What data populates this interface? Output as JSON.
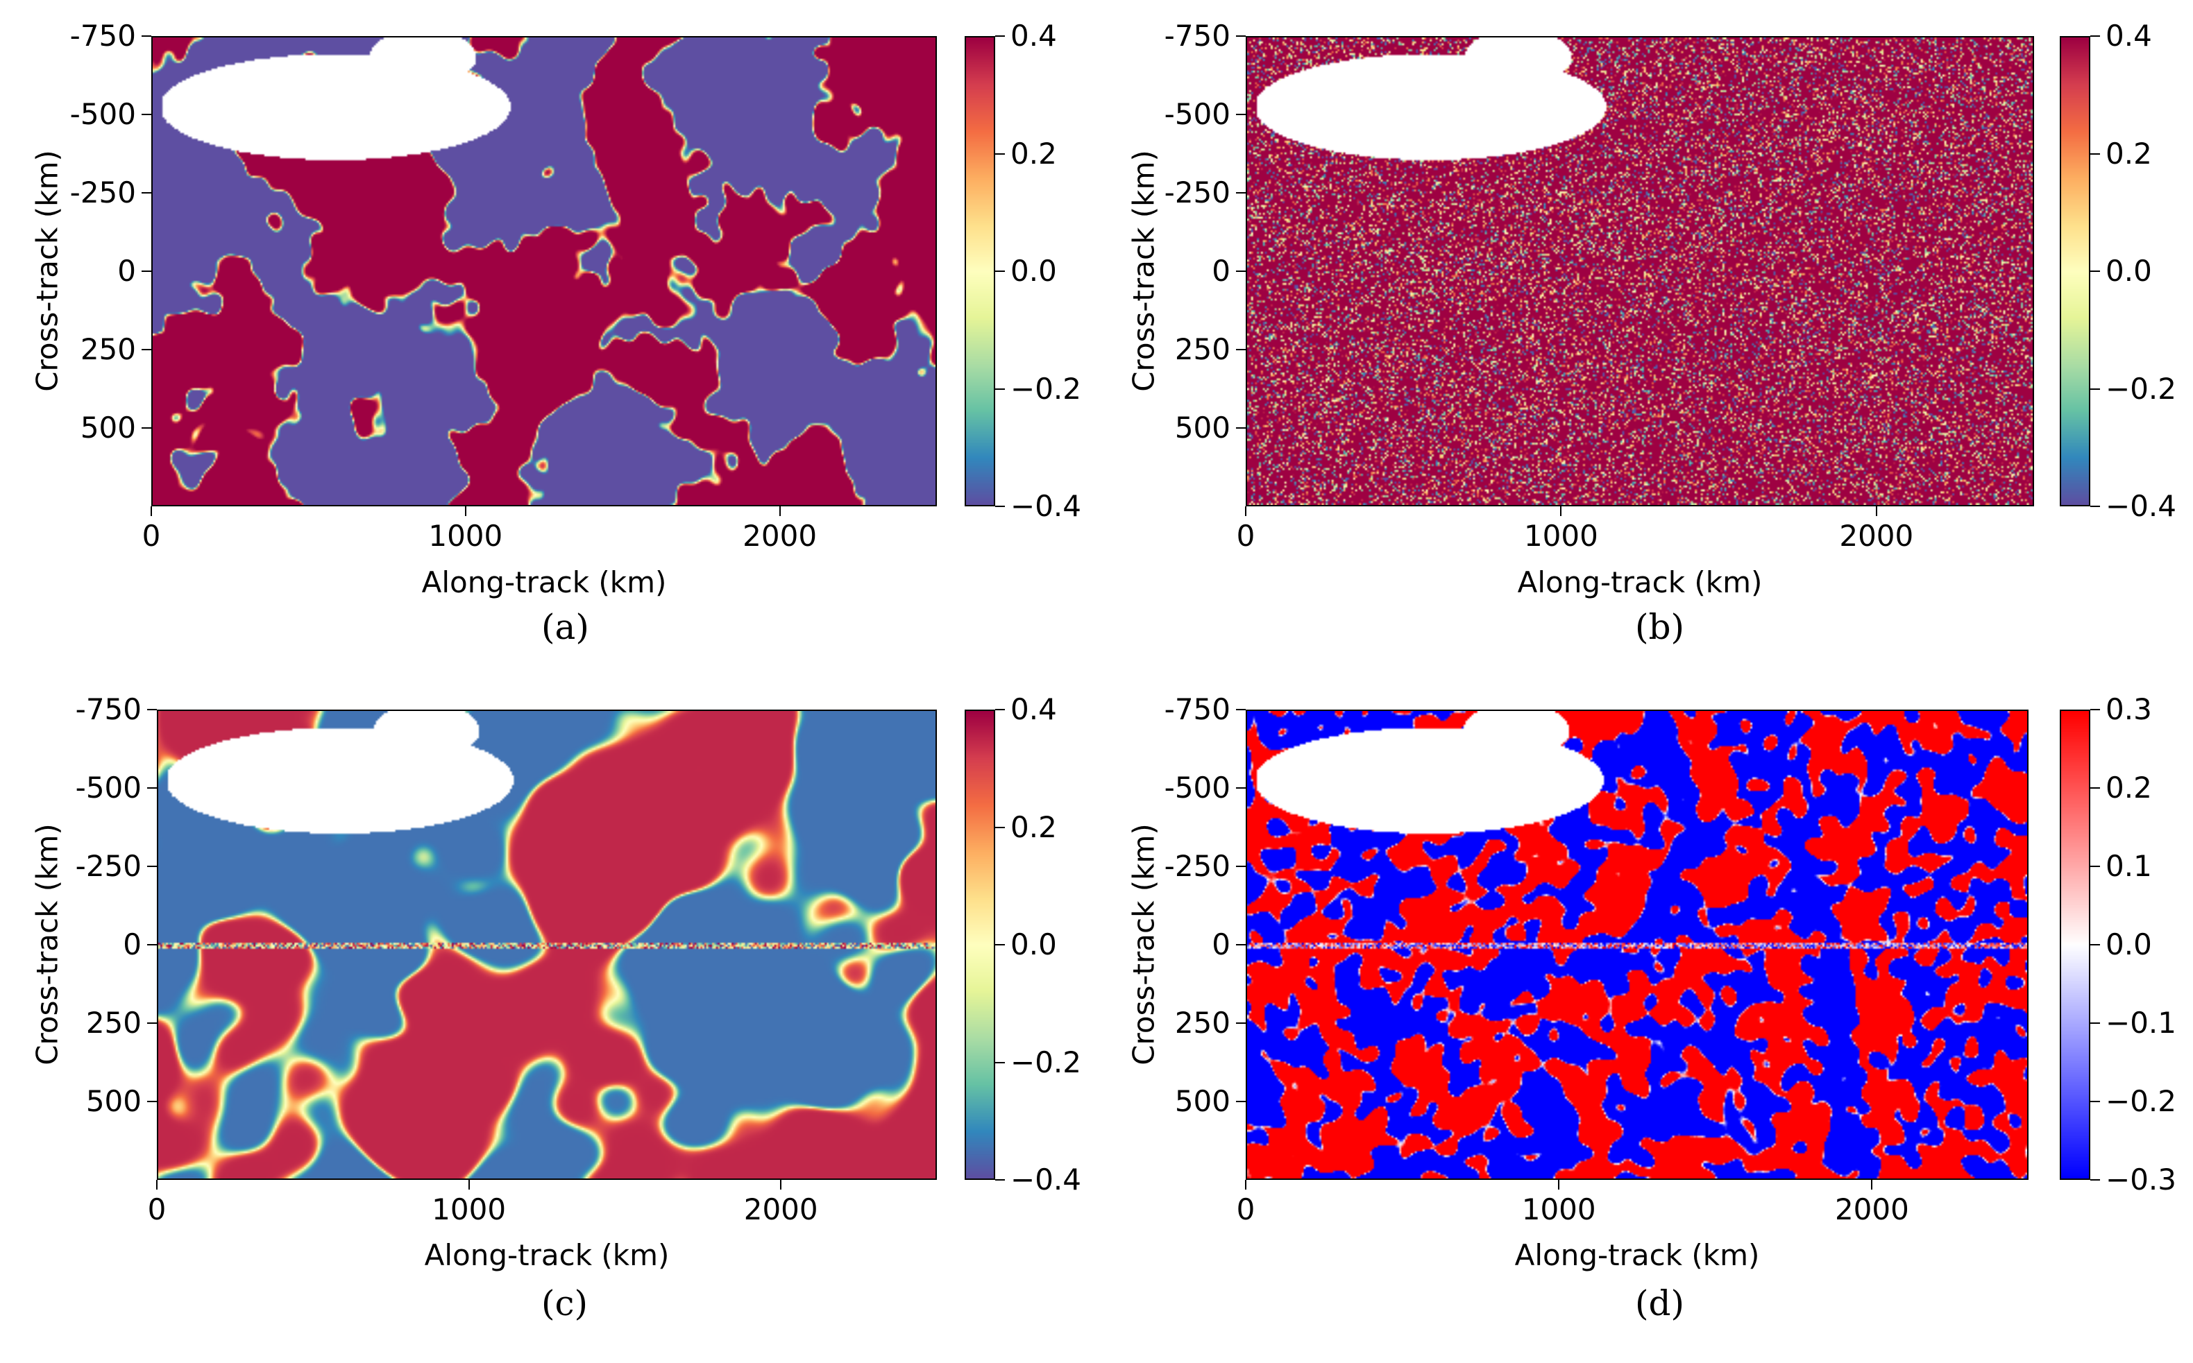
{
  "panels_labels": [
    "(a)",
    "(b)",
    "(c)",
    "(d)"
  ],
  "chart_data": [
    {
      "type": "heatmap",
      "panel": "a",
      "xlabel": "Along-track (km)",
      "ylabel": "Cross-track (km)",
      "xlim": [
        0,
        2500
      ],
      "ylim": [
        750,
        -750
      ],
      "xticks": [
        "0",
        "1000",
        "2000"
      ],
      "xtick_values": [
        0,
        1000,
        2000
      ],
      "yticks": [
        "-750",
        "-500",
        "-250",
        "0",
        "250",
        "500"
      ],
      "ytick_values": [
        -750,
        -500,
        -250,
        0,
        250,
        500
      ],
      "colorbar": {
        "colormap": "Spectral_r",
        "range": [
          -0.4,
          0.4
        ],
        "ticks": [
          "0.4",
          "0.2",
          "0.0",
          "−0.2",
          "−0.4"
        ],
        "tick_values": [
          0.4,
          0.2,
          0.0,
          -0.2,
          -0.4
        ]
      },
      "field": "smooth eddy field with land mask at top-left",
      "colors": {
        "land": "#ffffff"
      }
    },
    {
      "type": "heatmap",
      "panel": "b",
      "xlabel": "Along-track (km)",
      "ylabel": "Cross-track (km)",
      "xlim": [
        0,
        2500
      ],
      "ylim": [
        750,
        -750
      ],
      "xticks": [
        "0",
        "1000",
        "2000"
      ],
      "xtick_values": [
        0,
        1000,
        2000
      ],
      "yticks": [
        "-750",
        "-500",
        "-250",
        "0",
        "250",
        "500"
      ],
      "ytick_values": [
        -750,
        -500,
        -250,
        0,
        250,
        500
      ],
      "colorbar": {
        "colormap": "Spectral_r",
        "range": [
          -0.4,
          0.4
        ],
        "ticks": [
          "0.4",
          "0.2",
          "0.0",
          "−0.2",
          "−0.4"
        ],
        "tick_values": [
          0.4,
          0.2,
          0.0,
          -0.2,
          -0.4
        ]
      },
      "field": "noise-dominated field, mostly saturated red",
      "colors": {
        "land": "#ffffff"
      }
    },
    {
      "type": "heatmap",
      "panel": "c",
      "xlabel": "Along-track (km)",
      "ylabel": "Cross-track (km)",
      "xlim": [
        0,
        2500
      ],
      "ylim": [
        750,
        -750
      ],
      "xticks": [
        "0",
        "1000",
        "2000"
      ],
      "xtick_values": [
        0,
        1000,
        2000
      ],
      "yticks": [
        "-750",
        "-500",
        "-250",
        "0",
        "250",
        "500"
      ],
      "ytick_values": [
        -750,
        -500,
        -250,
        0,
        250,
        500
      ],
      "colorbar": {
        "colormap": "Spectral_r",
        "range": [
          -0.4,
          0.4
        ],
        "ticks": [
          "0.4",
          "0.2",
          "0.0",
          "−0.2",
          "−0.4"
        ],
        "tick_values": [
          0.4,
          0.2,
          0.0,
          -0.2,
          -0.4
        ]
      },
      "field": "smoothed large-scale field with nadir stripe at 0 km",
      "colors": {
        "land": "#ffffff"
      }
    },
    {
      "type": "heatmap",
      "panel": "d",
      "xlabel": "Along-track (km)",
      "ylabel": "Cross-track (km)",
      "xlim": [
        0,
        2500
      ],
      "ylim": [
        750,
        -750
      ],
      "xticks": [
        "0",
        "1000",
        "2000"
      ],
      "xtick_values": [
        0,
        1000,
        2000
      ],
      "yticks": [
        "-750",
        "-500",
        "-250",
        "0",
        "250",
        "500"
      ],
      "ytick_values": [
        -750,
        -500,
        -250,
        0,
        250,
        500
      ],
      "colorbar": {
        "colormap": "bwr",
        "range": [
          -0.3,
          0.3
        ],
        "ticks": [
          "0.3",
          "0.2",
          "0.1",
          "0.0",
          "−0.1",
          "−0.2",
          "−0.3"
        ],
        "tick_values": [
          0.3,
          0.2,
          0.1,
          0.0,
          -0.1,
          -0.2,
          -0.3
        ]
      },
      "field": "difference field, thin red/blue filaments",
      "colors": {
        "land": "#ffffff"
      }
    }
  ]
}
